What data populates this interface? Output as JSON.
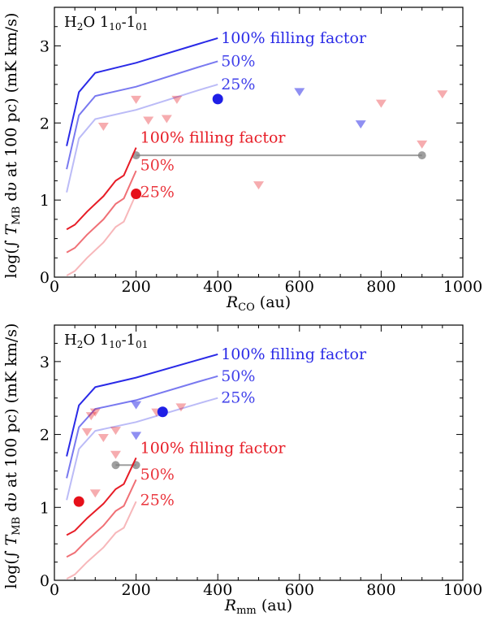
{
  "chart_data": [
    {
      "type": "line",
      "panel_label": {
        "main": "H",
        "sub1": "2",
        "mid": "O 1",
        "sub2": "10",
        "dash": "-1",
        "sub3": "01"
      },
      "xlabel": {
        "main": "R",
        "sub": "CO",
        "unit": "(au)"
      },
      "ylabel": {
        "prefix": "log(∫ ",
        "T": "T",
        "sub": "MB",
        "mid": " d",
        "v": "υ",
        "suffix": " at 100 pc) (mK km/s)"
      },
      "xlim": [
        0,
        1000
      ],
      "ylim": [
        0,
        3.5
      ],
      "xticks": [
        0,
        200,
        400,
        600,
        800,
        1000
      ],
      "yticks": [
        0,
        1,
        2,
        3
      ],
      "colors": {
        "blue": "#1f1fe6",
        "red": "#e6101a",
        "gray": "#7f7f7f"
      },
      "series": [
        {
          "name": "100% filling factor",
          "group": "blue",
          "opacity": 0.95,
          "x": [
            30,
            60,
            100,
            200,
            350,
            400
          ],
          "y": [
            1.7,
            2.4,
            2.65,
            2.78,
            3.02,
            3.1
          ]
        },
        {
          "name": "50%",
          "group": "blue",
          "opacity": 0.6,
          "x": [
            30,
            60,
            100,
            200,
            350,
            400
          ],
          "y": [
            1.4,
            2.1,
            2.35,
            2.47,
            2.72,
            2.8
          ]
        },
        {
          "name": "25%",
          "group": "blue",
          "opacity": 0.3,
          "x": [
            30,
            60,
            100,
            200,
            350,
            400
          ],
          "y": [
            1.1,
            1.8,
            2.05,
            2.17,
            2.42,
            2.5
          ]
        },
        {
          "name": "100% filling factor",
          "group": "red",
          "opacity": 0.95,
          "x": [
            30,
            50,
            80,
            120,
            150,
            170,
            200
          ],
          "y": [
            0.62,
            0.68,
            0.85,
            1.05,
            1.25,
            1.32,
            1.68
          ]
        },
        {
          "name": "50%",
          "group": "red",
          "opacity": 0.6,
          "x": [
            30,
            50,
            80,
            120,
            150,
            170,
            200
          ],
          "y": [
            0.32,
            0.38,
            0.55,
            0.75,
            0.95,
            1.02,
            1.38
          ]
        },
        {
          "name": "25%",
          "group": "red",
          "opacity": 0.3,
          "x": [
            30,
            50,
            80,
            120,
            150,
            170,
            200
          ],
          "y": [
            0.02,
            0.08,
            0.25,
            0.45,
            0.65,
            0.72,
            1.08
          ]
        }
      ],
      "series_label_positions": [
        {
          "group": "blue",
          "index": 0,
          "x": 408,
          "y": 3.1
        },
        {
          "group": "blue",
          "index": 1,
          "x": 408,
          "y": 2.8
        },
        {
          "group": "blue",
          "index": 2,
          "x": 408,
          "y": 2.5
        },
        {
          "group": "red",
          "index": 3,
          "x": 210,
          "y": 1.81
        },
        {
          "group": "red",
          "index": 4,
          "x": 210,
          "y": 1.45
        },
        {
          "group": "red",
          "index": 5,
          "x": 210,
          "y": 1.1
        }
      ],
      "detections": [
        {
          "color": "blue",
          "x": 400,
          "y": 2.31
        },
        {
          "color": "red",
          "x": 200,
          "y": 1.08
        }
      ],
      "upper_limits": [
        {
          "color": "red",
          "x": 120,
          "y": 1.95
        },
        {
          "color": "red",
          "x": 200,
          "y": 2.3
        },
        {
          "color": "red",
          "x": 230,
          "y": 2.03
        },
        {
          "color": "red",
          "x": 275,
          "y": 2.05
        },
        {
          "color": "red",
          "x": 300,
          "y": 2.3
        },
        {
          "color": "red",
          "x": 500,
          "y": 1.19
        },
        {
          "color": "red",
          "x": 800,
          "y": 2.25
        },
        {
          "color": "red",
          "x": 900,
          "y": 1.72
        },
        {
          "color": "red",
          "x": 950,
          "y": 2.37
        },
        {
          "color": "blue",
          "x": 600,
          "y": 2.4
        },
        {
          "color": "blue",
          "x": 750,
          "y": 1.98
        }
      ],
      "gray_segment": {
        "x": [
          200,
          900
        ],
        "y": [
          1.58,
          1.58
        ]
      }
    },
    {
      "type": "line",
      "panel_label": {
        "main": "H",
        "sub1": "2",
        "mid": "O 1",
        "sub2": "10",
        "dash": "-1",
        "sub3": "01"
      },
      "xlabel": {
        "main": "R",
        "sub": "mm",
        "unit": "(au)"
      },
      "ylabel": {
        "prefix": "log(∫ ",
        "T": "T",
        "sub": "MB",
        "mid": " d",
        "v": "υ",
        "suffix": " at 100 pc) (mK km/s)"
      },
      "xlim": [
        0,
        1000
      ],
      "ylim": [
        0,
        3.5
      ],
      "xticks": [
        0,
        200,
        400,
        600,
        800,
        1000
      ],
      "yticks": [
        0,
        1,
        2,
        3
      ],
      "colors": {
        "blue": "#1f1fe6",
        "red": "#e6101a",
        "gray": "#7f7f7f"
      },
      "series": [
        {
          "name": "100% filling factor",
          "group": "blue",
          "opacity": 0.95,
          "x": [
            30,
            60,
            100,
            200,
            350,
            400
          ],
          "y": [
            1.7,
            2.4,
            2.65,
            2.78,
            3.02,
            3.1
          ]
        },
        {
          "name": "50%",
          "group": "blue",
          "opacity": 0.6,
          "x": [
            30,
            60,
            100,
            200,
            350,
            400
          ],
          "y": [
            1.4,
            2.1,
            2.35,
            2.47,
            2.72,
            2.8
          ]
        },
        {
          "name": "25%",
          "group": "blue",
          "opacity": 0.3,
          "x": [
            30,
            60,
            100,
            200,
            350,
            400
          ],
          "y": [
            1.1,
            1.8,
            2.05,
            2.17,
            2.42,
            2.5
          ]
        },
        {
          "name": "100% filling factor",
          "group": "red",
          "opacity": 0.95,
          "x": [
            30,
            50,
            80,
            120,
            150,
            170,
            200
          ],
          "y": [
            0.62,
            0.68,
            0.85,
            1.05,
            1.25,
            1.32,
            1.68
          ]
        },
        {
          "name": "50%",
          "group": "red",
          "opacity": 0.6,
          "x": [
            30,
            50,
            80,
            120,
            150,
            170,
            200
          ],
          "y": [
            0.32,
            0.38,
            0.55,
            0.75,
            0.95,
            1.02,
            1.38
          ]
        },
        {
          "name": "25%",
          "group": "red",
          "opacity": 0.3,
          "x": [
            30,
            50,
            80,
            120,
            150,
            170,
            200
          ],
          "y": [
            0.02,
            0.08,
            0.25,
            0.45,
            0.65,
            0.72,
            1.08
          ]
        }
      ],
      "series_label_positions": [
        {
          "group": "blue",
          "index": 0,
          "x": 408,
          "y": 3.1
        },
        {
          "group": "blue",
          "index": 1,
          "x": 408,
          "y": 2.8
        },
        {
          "group": "blue",
          "index": 2,
          "x": 408,
          "y": 2.5
        },
        {
          "group": "red",
          "index": 3,
          "x": 210,
          "y": 1.81
        },
        {
          "group": "red",
          "index": 4,
          "x": 210,
          "y": 1.45
        },
        {
          "group": "red",
          "index": 5,
          "x": 210,
          "y": 1.1
        }
      ],
      "detections": [
        {
          "color": "blue",
          "x": 265,
          "y": 2.31
        },
        {
          "color": "red",
          "x": 60,
          "y": 1.08
        }
      ],
      "upper_limits": [
        {
          "color": "red",
          "x": 80,
          "y": 2.03
        },
        {
          "color": "red",
          "x": 90,
          "y": 2.25
        },
        {
          "color": "red",
          "x": 100,
          "y": 2.3
        },
        {
          "color": "red",
          "x": 100,
          "y": 1.19
        },
        {
          "color": "red",
          "x": 120,
          "y": 1.95
        },
        {
          "color": "red",
          "x": 150,
          "y": 2.05
        },
        {
          "color": "red",
          "x": 150,
          "y": 1.72
        },
        {
          "color": "red",
          "x": 250,
          "y": 2.3
        },
        {
          "color": "red",
          "x": 310,
          "y": 2.37
        },
        {
          "color": "blue",
          "x": 200,
          "y": 2.4
        },
        {
          "color": "blue",
          "x": 200,
          "y": 1.98
        }
      ],
      "gray_segment": {
        "x": [
          150,
          200
        ],
        "y": [
          1.58,
          1.58
        ]
      }
    }
  ]
}
